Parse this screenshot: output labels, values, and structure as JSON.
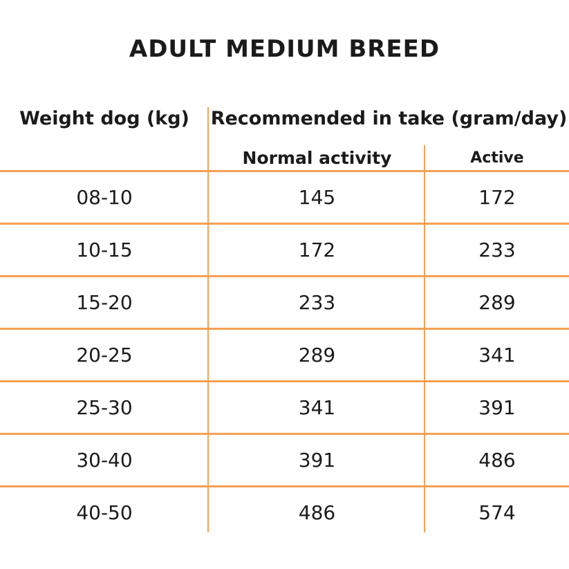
{
  "colors": {
    "accent": "#F5A053",
    "text": "#1B1B1B"
  },
  "chart_data": {
    "type": "table",
    "title": "ADULT MEDIUM BREED",
    "group_header": "Recommended in take (gram/day)",
    "columns": [
      "Weight dog (kg)",
      "Normal activity",
      "Active"
    ],
    "rows": [
      {
        "weight": "08-10",
        "normal": "145",
        "active": "172"
      },
      {
        "weight": "10-15",
        "normal": "172",
        "active": "233"
      },
      {
        "weight": "15-20",
        "normal": "233",
        "active": "289"
      },
      {
        "weight": "20-25",
        "normal": "289",
        "active": "341"
      },
      {
        "weight": "25-30",
        "normal": "341",
        "active": "391"
      },
      {
        "weight": "30-40",
        "normal": "391",
        "active": "486"
      },
      {
        "weight": "40-50",
        "normal": "486",
        "active": "574"
      }
    ]
  }
}
